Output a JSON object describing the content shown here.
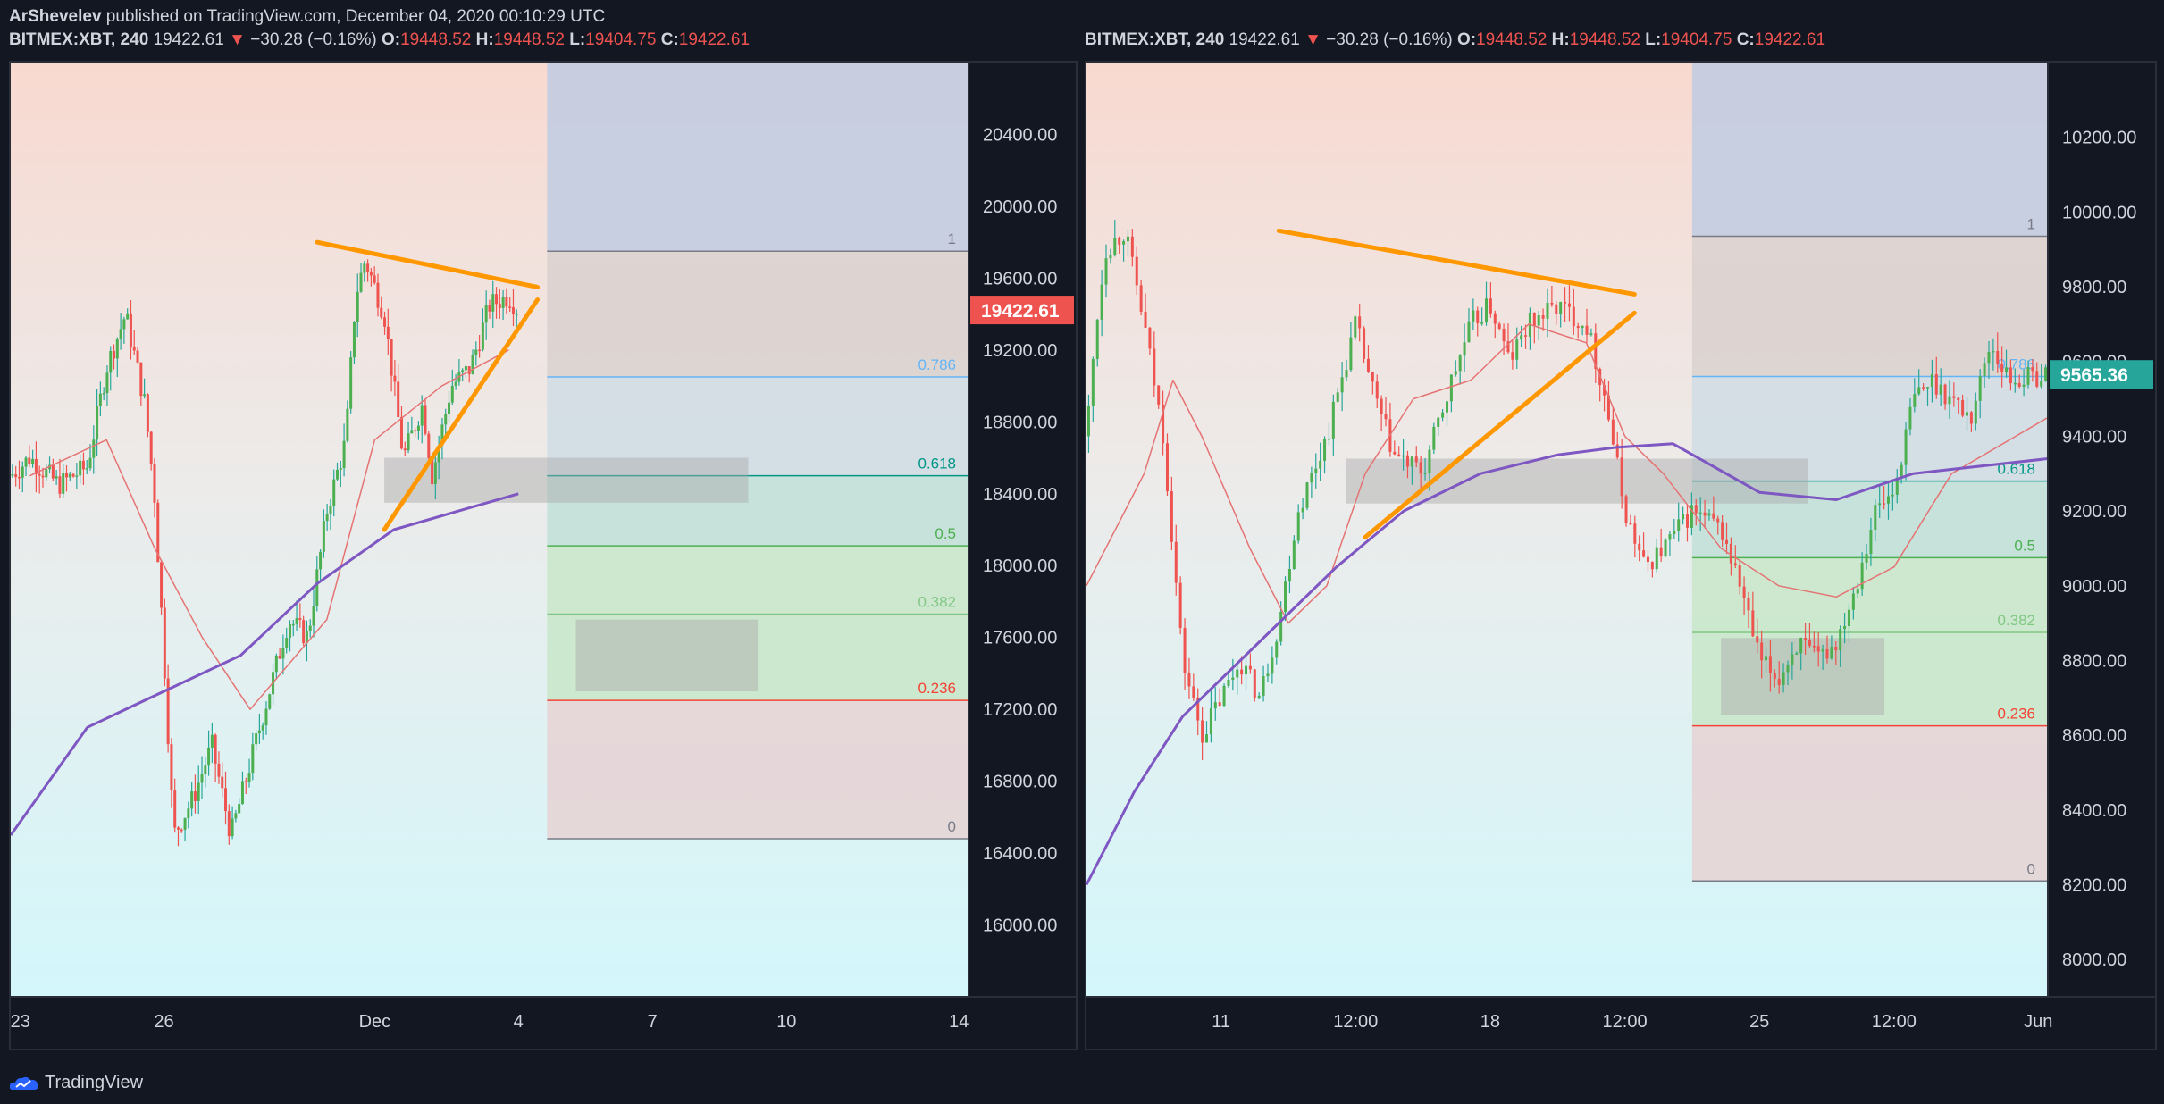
{
  "header": {
    "author": "ArShevelev",
    "published": "published on TradingView.com, December 04, 2020 00:10:29 UTC"
  },
  "ohlc": {
    "symbol": "BITMEX:XBT, 240",
    "last": "19422.61",
    "arrow": "▼",
    "change": "−30.28 (−0.16%)",
    "o_label": "O:",
    "o": "19448.52",
    "h_label": "H:",
    "h": "19448.52",
    "l_label": "L:",
    "l": "19404.75",
    "c_label": "C:",
    "c": "19422.61"
  },
  "footer": {
    "brand": "TradingView"
  },
  "colors": {
    "up": "#26a69a",
    "up_body": "#4caf50",
    "down": "#ef5350",
    "sma_purple": "#7e57c2",
    "ema_red": "#e57373",
    "trendline": "#ff9800",
    "price_badge_red": "#ef5350",
    "price_badge_green": "#26a69a"
  },
  "chart_data": [
    {
      "type": "candlestick",
      "symbol": "BITMEX:XBT, 240",
      "ylim": [
        15600,
        20800
      ],
      "y_ticks": [
        "20400.00",
        "20000.00",
        "19600.00",
        "19200.00",
        "18800.00",
        "18400.00",
        "18000.00",
        "17600.00",
        "17200.00",
        "16800.00",
        "16400.00",
        "16000.00"
      ],
      "x_ticks": [
        "23",
        "26",
        "Dec",
        "4",
        "7",
        "10",
        "14"
      ],
      "x_tick_fracs": [
        0.01,
        0.16,
        0.38,
        0.53,
        0.67,
        0.81,
        0.99
      ],
      "last_price": "19422.61",
      "price_path": [
        [
          0.0,
          18500
        ],
        [
          0.02,
          18600
        ],
        [
          0.05,
          18450
        ],
        [
          0.08,
          18550
        ],
        [
          0.1,
          19100
        ],
        [
          0.12,
          19400
        ],
        [
          0.14,
          18900
        ],
        [
          0.15,
          18400
        ],
        [
          0.16,
          17500
        ],
        [
          0.17,
          16500
        ],
        [
          0.19,
          16700
        ],
        [
          0.21,
          17000
        ],
        [
          0.23,
          16500
        ],
        [
          0.25,
          16900
        ],
        [
          0.27,
          17300
        ],
        [
          0.29,
          17700
        ],
        [
          0.31,
          17600
        ],
        [
          0.33,
          18300
        ],
        [
          0.35,
          18700
        ],
        [
          0.36,
          19500
        ],
        [
          0.37,
          19700
        ],
        [
          0.39,
          19400
        ],
        [
          0.41,
          18600
        ],
        [
          0.43,
          18900
        ],
        [
          0.44,
          18500
        ],
        [
          0.46,
          19000
        ],
        [
          0.48,
          19100
        ],
        [
          0.5,
          19450
        ],
        [
          0.52,
          19500
        ],
        [
          0.53,
          19420
        ]
      ],
      "sma_path": [
        [
          0.0,
          16500
        ],
        [
          0.08,
          17100
        ],
        [
          0.16,
          17300
        ],
        [
          0.24,
          17500
        ],
        [
          0.32,
          17900
        ],
        [
          0.4,
          18200
        ],
        [
          0.53,
          18400
        ]
      ],
      "ema_path": [
        [
          0.02,
          18500
        ],
        [
          0.1,
          18700
        ],
        [
          0.15,
          18100
        ],
        [
          0.2,
          17600
        ],
        [
          0.25,
          17200
        ],
        [
          0.33,
          17700
        ],
        [
          0.38,
          18700
        ],
        [
          0.45,
          19000
        ],
        [
          0.52,
          19200
        ]
      ],
      "trendlines": [
        [
          [
            0.32,
            19800
          ],
          [
            0.55,
            19550
          ]
        ],
        [
          [
            0.39,
            18200
          ],
          [
            0.55,
            19480
          ]
        ]
      ],
      "fib": {
        "x_range": [
          0.56,
          1.0
        ],
        "levels": [
          {
            "label": "1",
            "price": 19750
          },
          {
            "label": "0.786",
            "price": 19050
          },
          {
            "label": "0.618",
            "price": 18500
          },
          {
            "label": "0.5",
            "price": 18110
          },
          {
            "label": "0.382",
            "price": 17730
          },
          {
            "label": "0.236",
            "price": 17250
          },
          {
            "label": "0",
            "price": 16480
          }
        ]
      },
      "boxes": [
        {
          "x": [
            0.39,
            0.77
          ],
          "y": [
            18600,
            18350
          ]
        },
        {
          "x": [
            0.59,
            0.78
          ],
          "y": [
            17700,
            17300
          ]
        }
      ]
    },
    {
      "type": "candlestick",
      "symbol": "BITMEX:XBT, 240",
      "ylim": [
        7900,
        10400
      ],
      "y_ticks": [
        "10200.00",
        "10000.00",
        "9800.00",
        "9600.00",
        "9400.00",
        "9200.00",
        "9000.00",
        "8800.00",
        "8600.00",
        "8400.00",
        "8200.00",
        "8000.00"
      ],
      "x_ticks": [
        "11",
        "12:00",
        "18",
        "12:00",
        "25",
        "12:00",
        "Jun"
      ],
      "x_tick_fracs": [
        0.14,
        0.28,
        0.42,
        0.56,
        0.7,
        0.84,
        0.99
      ],
      "last_price": "9565.36",
      "price_path": [
        [
          0.0,
          9400
        ],
        [
          0.01,
          9700
        ],
        [
          0.02,
          9900
        ],
        [
          0.04,
          9950
        ],
        [
          0.06,
          9700
        ],
        [
          0.08,
          9400
        ],
        [
          0.1,
          8800
        ],
        [
          0.11,
          8700
        ],
        [
          0.12,
          8600
        ],
        [
          0.14,
          8700
        ],
        [
          0.16,
          8800
        ],
        [
          0.18,
          8700
        ],
        [
          0.2,
          8900
        ],
        [
          0.22,
          9200
        ],
        [
          0.25,
          9400
        ],
        [
          0.28,
          9700
        ],
        [
          0.3,
          9500
        ],
        [
          0.32,
          9350
        ],
        [
          0.35,
          9300
        ],
        [
          0.38,
          9550
        ],
        [
          0.4,
          9700
        ],
        [
          0.42,
          9750
        ],
        [
          0.44,
          9600
        ],
        [
          0.46,
          9700
        ],
        [
          0.49,
          9750
        ],
        [
          0.52,
          9700
        ],
        [
          0.54,
          9500
        ],
        [
          0.56,
          9200
        ],
        [
          0.58,
          9050
        ],
        [
          0.6,
          9100
        ],
        [
          0.63,
          9200
        ],
        [
          0.66,
          9150
        ],
        [
          0.68,
          9000
        ],
        [
          0.7,
          8800
        ],
        [
          0.72,
          8750
        ],
        [
          0.74,
          8850
        ],
        [
          0.76,
          8800
        ],
        [
          0.78,
          8850
        ],
        [
          0.8,
          9000
        ],
        [
          0.82,
          9200
        ],
        [
          0.84,
          9250
        ],
        [
          0.86,
          9500
        ],
        [
          0.88,
          9550
        ],
        [
          0.9,
          9500
        ],
        [
          0.92,
          9450
        ],
        [
          0.94,
          9650
        ],
        [
          0.96,
          9550
        ],
        [
          1.0,
          9565
        ]
      ],
      "sma_path": [
        [
          0.0,
          8200
        ],
        [
          0.05,
          8450
        ],
        [
          0.1,
          8650
        ],
        [
          0.18,
          8850
        ],
        [
          0.26,
          9050
        ],
        [
          0.33,
          9200
        ],
        [
          0.41,
          9300
        ],
        [
          0.49,
          9350
        ],
        [
          0.55,
          9370
        ],
        [
          0.61,
          9380
        ],
        [
          0.7,
          9250
        ],
        [
          0.78,
          9230
        ],
        [
          0.86,
          9300
        ],
        [
          1.0,
          9340
        ]
      ],
      "ema_path": [
        [
          0.0,
          9000
        ],
        [
          0.06,
          9300
        ],
        [
          0.09,
          9550
        ],
        [
          0.12,
          9400
        ],
        [
          0.17,
          9100
        ],
        [
          0.21,
          8900
        ],
        [
          0.25,
          9000
        ],
        [
          0.29,
          9300
        ],
        [
          0.34,
          9500
        ],
        [
          0.4,
          9550
        ],
        [
          0.46,
          9700
        ],
        [
          0.52,
          9650
        ],
        [
          0.56,
          9400
        ],
        [
          0.6,
          9300
        ],
        [
          0.66,
          9100
        ],
        [
          0.72,
          9000
        ],
        [
          0.78,
          8970
        ],
        [
          0.84,
          9050
        ],
        [
          0.9,
          9300
        ],
        [
          1.0,
          9450
        ]
      ],
      "trendlines": [
        [
          [
            0.2,
            9950
          ],
          [
            0.57,
            9780
          ]
        ],
        [
          [
            0.29,
            9130
          ],
          [
            0.57,
            9730
          ]
        ]
      ],
      "fib": {
        "x_range": [
          0.63,
          1.0
        ],
        "levels": [
          {
            "label": "1",
            "price": 9935
          },
          {
            "label": "0.786",
            "price": 9560
          },
          {
            "label": "0.618",
            "price": 9280
          },
          {
            "label": "0.5",
            "price": 9075
          },
          {
            "label": "0.382",
            "price": 8875
          },
          {
            "label": "0.236",
            "price": 8625
          },
          {
            "label": "0",
            "price": 8210
          }
        ]
      },
      "boxes": [
        {
          "x": [
            0.27,
            0.75
          ],
          "y": [
            9340,
            9220
          ]
        },
        {
          "x": [
            0.66,
            0.83
          ],
          "y": [
            8860,
            8655
          ]
        }
      ]
    }
  ]
}
